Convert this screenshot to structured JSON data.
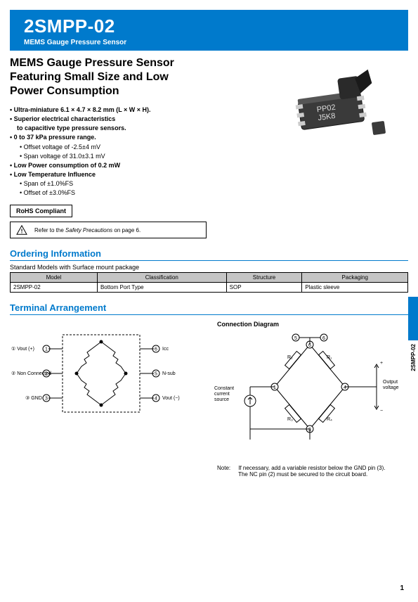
{
  "header": {
    "part_number": "2SMPP-02",
    "subtitle": "MEMS Gauge Pressure Sensor"
  },
  "main_title_l1": "MEMS Gauge Pressure Sensor",
  "main_title_l2": "Featuring Small Size and Low",
  "main_title_l3": "Power Consumption",
  "features": [
    {
      "text": "Ultra-miniature 6.1 × 4.7 × 8.2 mm (L × W × H).",
      "bold": true
    },
    {
      "text": "Superior electrical characteristics",
      "bold": true
    },
    {
      "text": "to capacitive type pressure sensors.",
      "bold": true,
      "indent": true
    },
    {
      "text": "0 to 37 kPa pressure range.",
      "bold": true
    },
    {
      "text": "Offset voltage of -2.5±4 mV",
      "sub": true
    },
    {
      "text": "Span voltage of 31.0±3.1 mV",
      "sub": true
    },
    {
      "text": "Low Power consumption of 0.2 mW",
      "bold": true
    },
    {
      "text": "Low Temperature Influence",
      "bold": true
    },
    {
      "text": "Span of ±1.0%FS",
      "sub": true
    },
    {
      "text": "Offset of ±3.0%FS",
      "sub": true
    }
  ],
  "rohs_label": "RoHS Compliant",
  "warn_text_pre": "Refer to the ",
  "warn_text_em": "Safety Precautions",
  "warn_text_post": " on page 6.",
  "sections": {
    "ordering": "Ordering Information",
    "terminal": "Terminal Arrangement"
  },
  "table_caption": "Standard Models with Surface mount package",
  "order_table": {
    "headers": [
      "Model",
      "Classification",
      "Structure",
      "Packaging"
    ],
    "row": [
      "2SMPP-02",
      "Bottom Port Type",
      "SOP",
      "Plastic sleeve"
    ]
  },
  "terminal_pins": {
    "p1": "Vout (+)",
    "p2": "Non Connected",
    "p3": "GND",
    "p4": "Vout (−)",
    "p5": "N-sub",
    "p6": "Icc"
  },
  "conn_diagram_title": "Connection Diagram",
  "conn_labels": {
    "src": "Constant\ncurrent\nsource",
    "r1": "R₁",
    "r2": "R₂",
    "r3": "R₃",
    "r4": "R₄",
    "out": "Output\nvoltage"
  },
  "note_label": "Note:",
  "note_l1": "If necessary, add a variable resistor below the GND pin (3).",
  "note_l2": "The NC pin (2) must be secured to the circuit board.",
  "side_label": "2SMPP-02",
  "page_number": "1",
  "colors": {
    "brand": "#007acc",
    "table_header_bg": "#c5c5c5",
    "text": "#000000"
  }
}
